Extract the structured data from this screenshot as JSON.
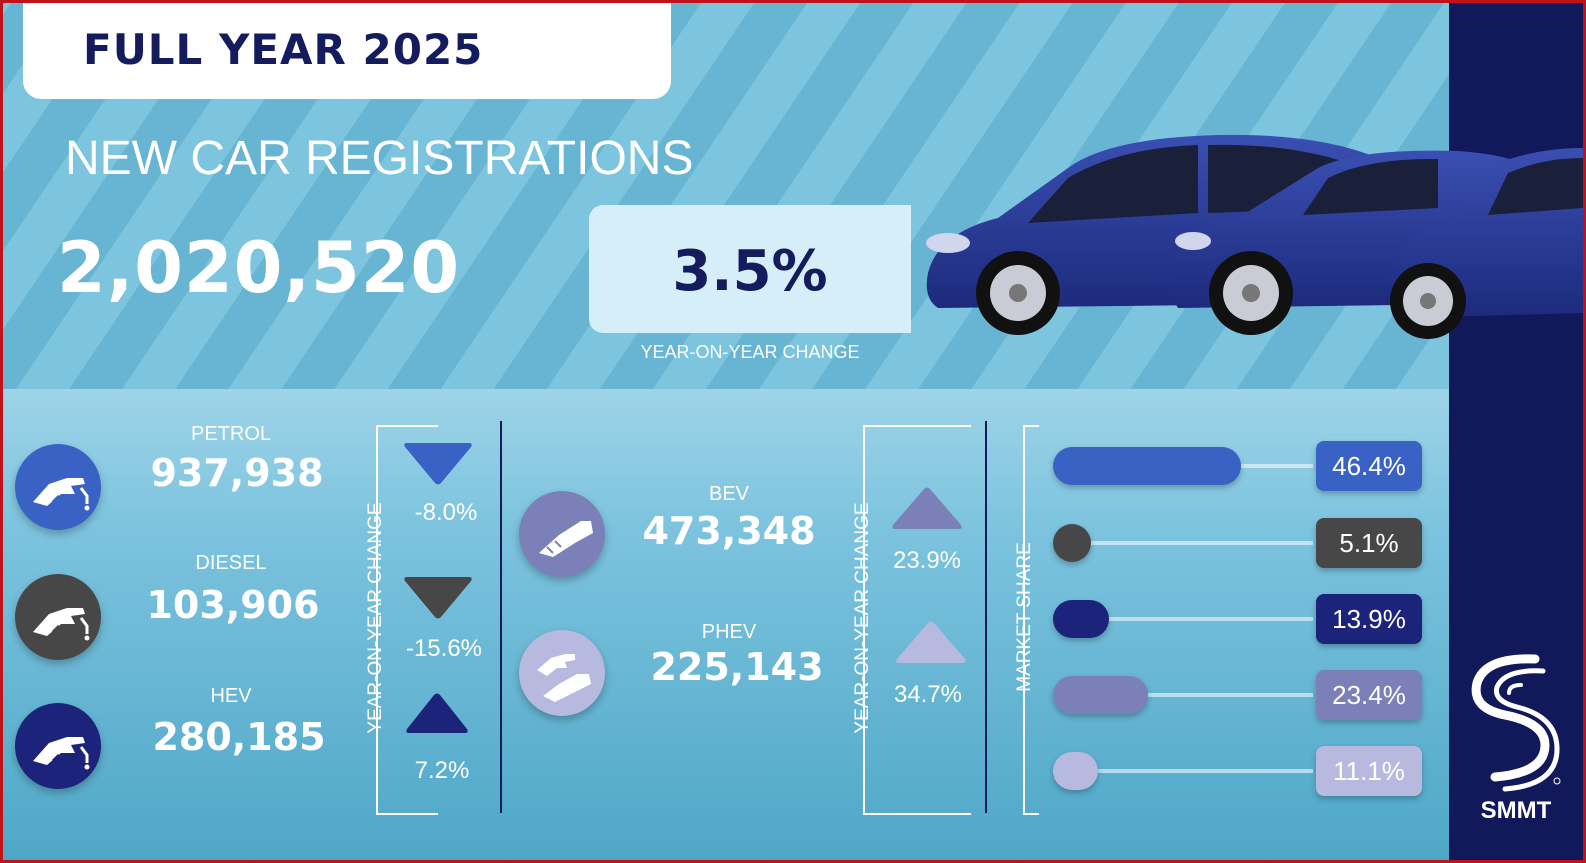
{
  "header": {
    "title": "FULL YEAR 2025",
    "subtitle": "NEW CAR REGISTRATIONS",
    "total": "2,020,520",
    "yoy_value": "3.5%",
    "yoy_label": "YEAR-ON-YEAR CHANGE"
  },
  "labels": {
    "yoy_vertical": "YEAR-ON-YEAR CHANGE",
    "market_share": "MARKET SHARE"
  },
  "fuels": [
    {
      "name": "PETROL",
      "value": "937,938",
      "change": "-8.0%",
      "direction": "down",
      "color": "#3a62c4",
      "share": "46.4%",
      "share_fraction": 0.464
    },
    {
      "name": "DIESEL",
      "value": "103,906",
      "change": "-15.6%",
      "direction": "down",
      "color": "#474747",
      "share": "5.1%",
      "share_fraction": 0.051
    },
    {
      "name": "HEV",
      "value": "280,185",
      "change": "7.2%",
      "direction": "up",
      "color": "#1b237a",
      "share": "13.9%",
      "share_fraction": 0.139
    },
    {
      "name": "BEV",
      "value": "473,348",
      "change": "23.9%",
      "direction": "up",
      "color": "#7b80b9",
      "share": "23.4%",
      "share_fraction": 0.234
    },
    {
      "name": "PHEV",
      "value": "225,143",
      "change": "34.7%",
      "direction": "up",
      "color": "#b7bade",
      "share": "11.1%",
      "share_fraction": 0.111
    }
  ],
  "icons": {
    "petrol": "fuel-pump-nozzle-icon",
    "diesel": "fuel-pump-nozzle-icon",
    "hev": "fuel-pump-nozzle-icon",
    "bev": "ev-charging-plug-icon",
    "phev": "plug-and-nozzle-icon"
  },
  "brand": {
    "name": "SMMT",
    "colors": {
      "background_stripe_light": "#7dc4de",
      "navy": "#12195a",
      "frame": "#c0121b"
    }
  }
}
